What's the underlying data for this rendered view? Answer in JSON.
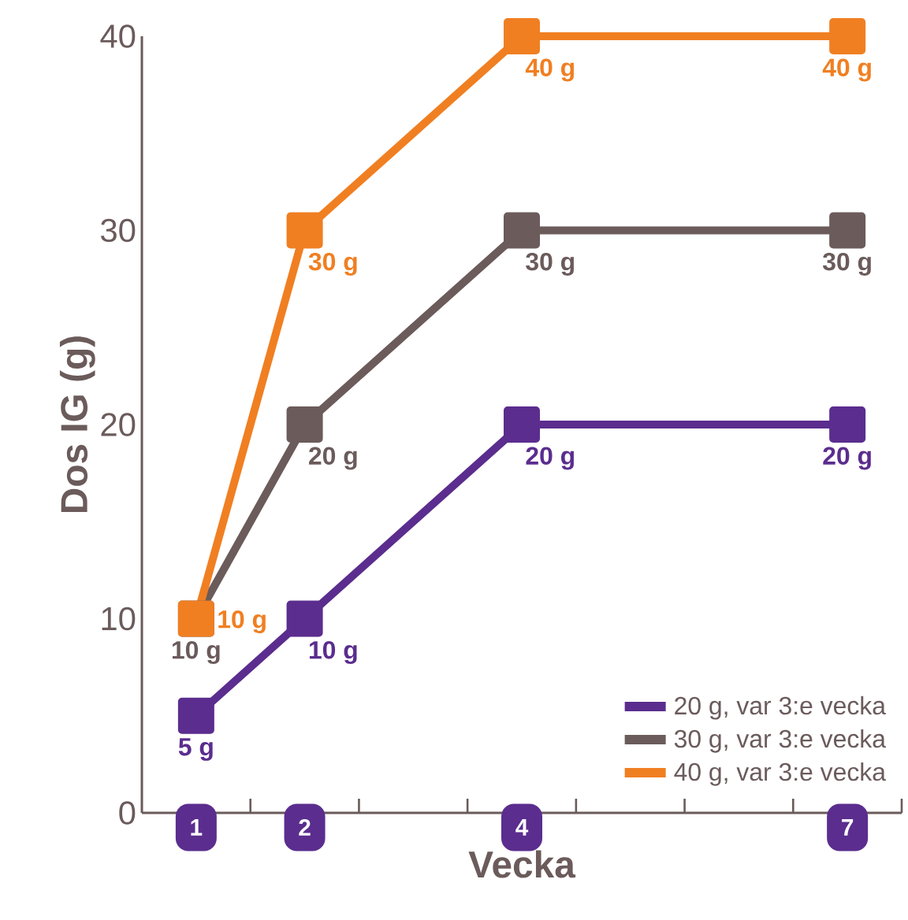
{
  "chart_data": {
    "type": "line",
    "xlabel": "Vecka",
    "ylabel": "Dos IG (g)",
    "x": [
      1,
      2,
      4,
      7
    ],
    "xlim": [
      0.5,
      7.5
    ],
    "xticks": [
      1,
      2,
      4,
      7,
      {
        "value": 1.5,
        "label": null
      },
      {
        "value": 2.5,
        "label": null
      },
      {
        "value": 3.5,
        "label": null
      },
      {
        "value": 4.5,
        "label": null
      },
      {
        "value": 5.5,
        "label": null
      },
      {
        "value": 6.5,
        "label": null
      },
      {
        "value": 7.5,
        "label": null
      }
    ],
    "ylim": [
      0,
      40
    ],
    "yticks": [
      0,
      10,
      20,
      30,
      40
    ],
    "marker": "square",
    "line_style": "solid",
    "legend": "bottom right",
    "grid": false,
    "series": [
      {
        "name": "20 g, var 3:e vecka",
        "color": "#5b2d8e",
        "values": [
          5,
          10,
          20,
          20
        ],
        "value_labels": [
          "5 g",
          "10 g",
          "20 g",
          "20 g"
        ]
      },
      {
        "name": "30 g, var 3:e vecka",
        "color": "#6b5b5b",
        "values": [
          10,
          20,
          30,
          30
        ],
        "value_labels": [
          "10 g",
          "20 g",
          "30 g",
          "30 g"
        ]
      },
      {
        "name": "40 g, var 3:e vecka",
        "color": "#f07f22",
        "values": [
          10,
          30,
          40,
          40
        ],
        "value_labels": [
          "10 g",
          "30 g",
          "40 g",
          "40 g"
        ]
      }
    ]
  }
}
